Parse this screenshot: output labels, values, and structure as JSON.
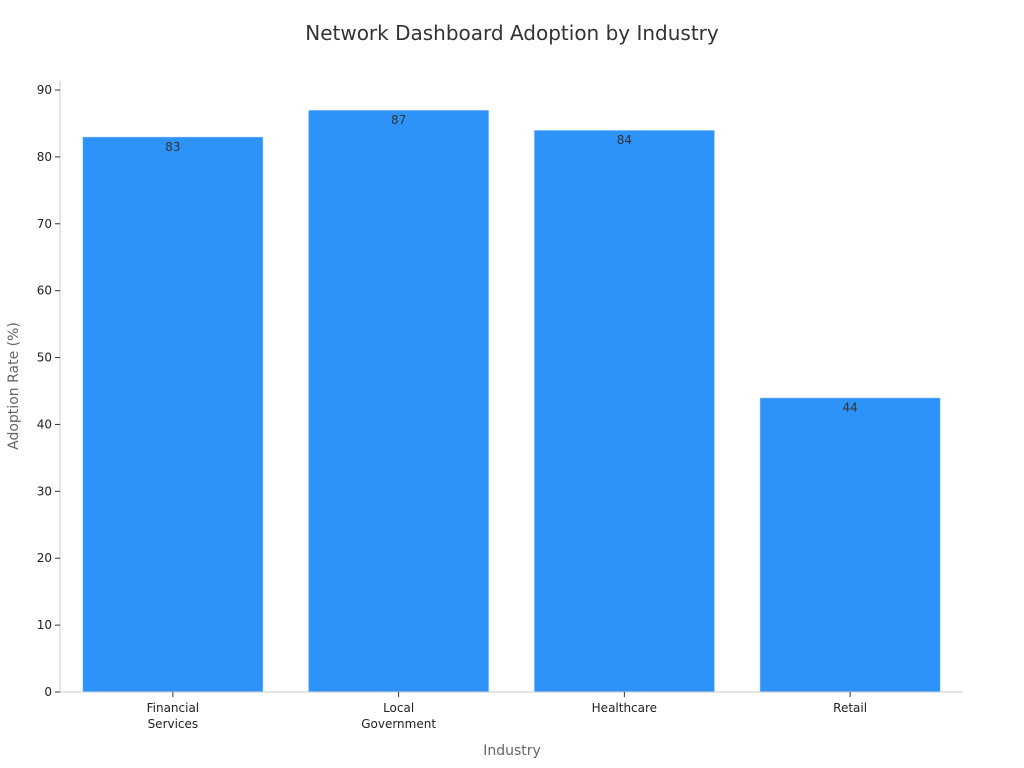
{
  "chart_data": {
    "type": "bar",
    "title": "Network Dashboard Adoption by Industry",
    "xlabel": "Industry",
    "ylabel": "Adoption Rate (%)",
    "categories": [
      [
        "Financial",
        "Services"
      ],
      [
        "Local",
        "Government"
      ],
      [
        "Healthcare"
      ],
      [
        "Retail"
      ]
    ],
    "values": [
      83,
      87,
      84,
      44
    ],
    "ylim": [
      0,
      90
    ],
    "yticks": [
      0,
      10,
      20,
      30,
      40,
      50,
      60,
      70,
      80,
      90
    ],
    "grid": false,
    "legend": "none",
    "bar_color": "#2e93f9"
  }
}
